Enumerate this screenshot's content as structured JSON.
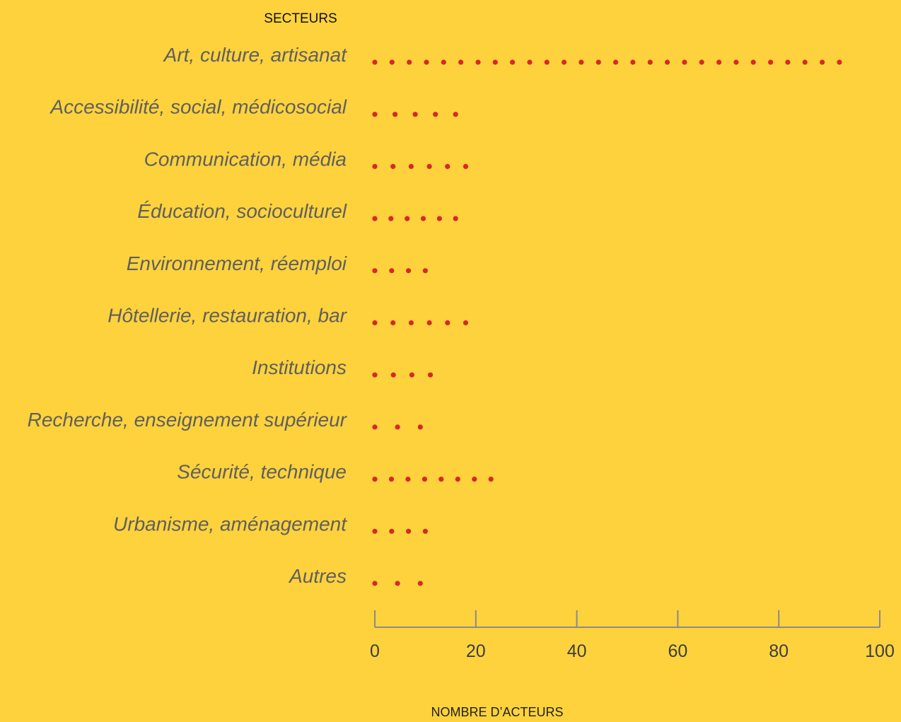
{
  "chart_data": {
    "type": "scatter",
    "ylabel": "SECTEURS",
    "xlabel": "NOMBRE D’ACTEURS",
    "categories": [
      "Art, culture, artisanat",
      "Accessibilité, social, médicosocial",
      "Communication, média",
      "Éducation, socioculturel",
      "Environnement, réemploi",
      "Hôtellerie, restauration, bar",
      "Institutions",
      "Recherche, enseignement supérieur",
      "Sécurité, technique",
      "Urbanisme, aménagement",
      "Autres"
    ],
    "series": [
      {
        "values": [
          92,
          16,
          18,
          16,
          10,
          18,
          11,
          9,
          23,
          10,
          9
        ]
      }
    ],
    "dot_counts": [
      28,
      5,
      6,
      6,
      4,
      6,
      4,
      3,
      8,
      4,
      3
    ],
    "xlim": [
      0,
      100
    ],
    "xticks": [
      "0",
      "20",
      "40",
      "60",
      "80",
      "100"
    ],
    "grid": false,
    "legend": "none"
  },
  "colors": {
    "background": "#FDD23C",
    "dots": "#D8272A",
    "axis": "#8a8a8a"
  }
}
